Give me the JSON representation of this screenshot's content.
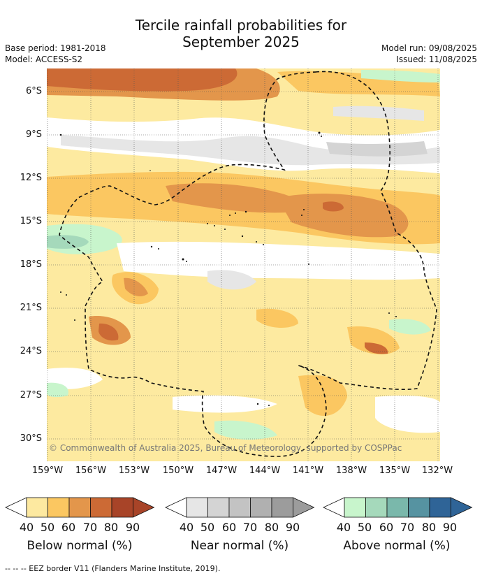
{
  "header": {
    "title_line1": "Tercile rainfall probabilities for",
    "title_line2": "September 2025",
    "base_period": "Base period: 1981-2018",
    "model": "Model: ACCESS-S2",
    "model_run": "Model run: 09/08/2025",
    "issued": "Issued: 11/08/2025"
  },
  "map": {
    "lat_labels": [
      "6°S",
      "9°S",
      "12°S",
      "15°S",
      "18°S",
      "21°S",
      "24°S",
      "27°S",
      "30°S"
    ],
    "lon_labels": [
      "159°W",
      "156°W",
      "153°W",
      "150°W",
      "147°W",
      "144°W",
      "141°W",
      "138°W",
      "135°W",
      "132°W"
    ],
    "copyright": "© Commonwealth of Australia 2025, Bureau of Meteorology, supported by COSPPac"
  },
  "colorbars": [
    {
      "label": "Below normal (%)",
      "ticks": [
        "40",
        "50",
        "60",
        "70",
        "80",
        "90"
      ],
      "colors": [
        "#fde9a0",
        "#fbc761",
        "#e3964b",
        "#cc6a35",
        "#a84428"
      ]
    },
    {
      "label": "Near normal (%)",
      "ticks": [
        "40",
        "50",
        "60",
        "70",
        "80",
        "90"
      ],
      "colors": [
        "#e6e6e6",
        "#d4d4d4",
        "#c3c3c3",
        "#b0b0b0",
        "#9c9c9c"
      ]
    },
    {
      "label": "Above normal (%)",
      "ticks": [
        "40",
        "50",
        "60",
        "70",
        "80",
        "90"
      ],
      "colors": [
        "#c8f5cc",
        "#a5d9bb",
        "#7ab8ab",
        "#5693a1",
        "#2f6497"
      ]
    }
  ],
  "footer": "--  --  -- EEZ border V11 (Flanders Marine Institute, 2019)."
}
